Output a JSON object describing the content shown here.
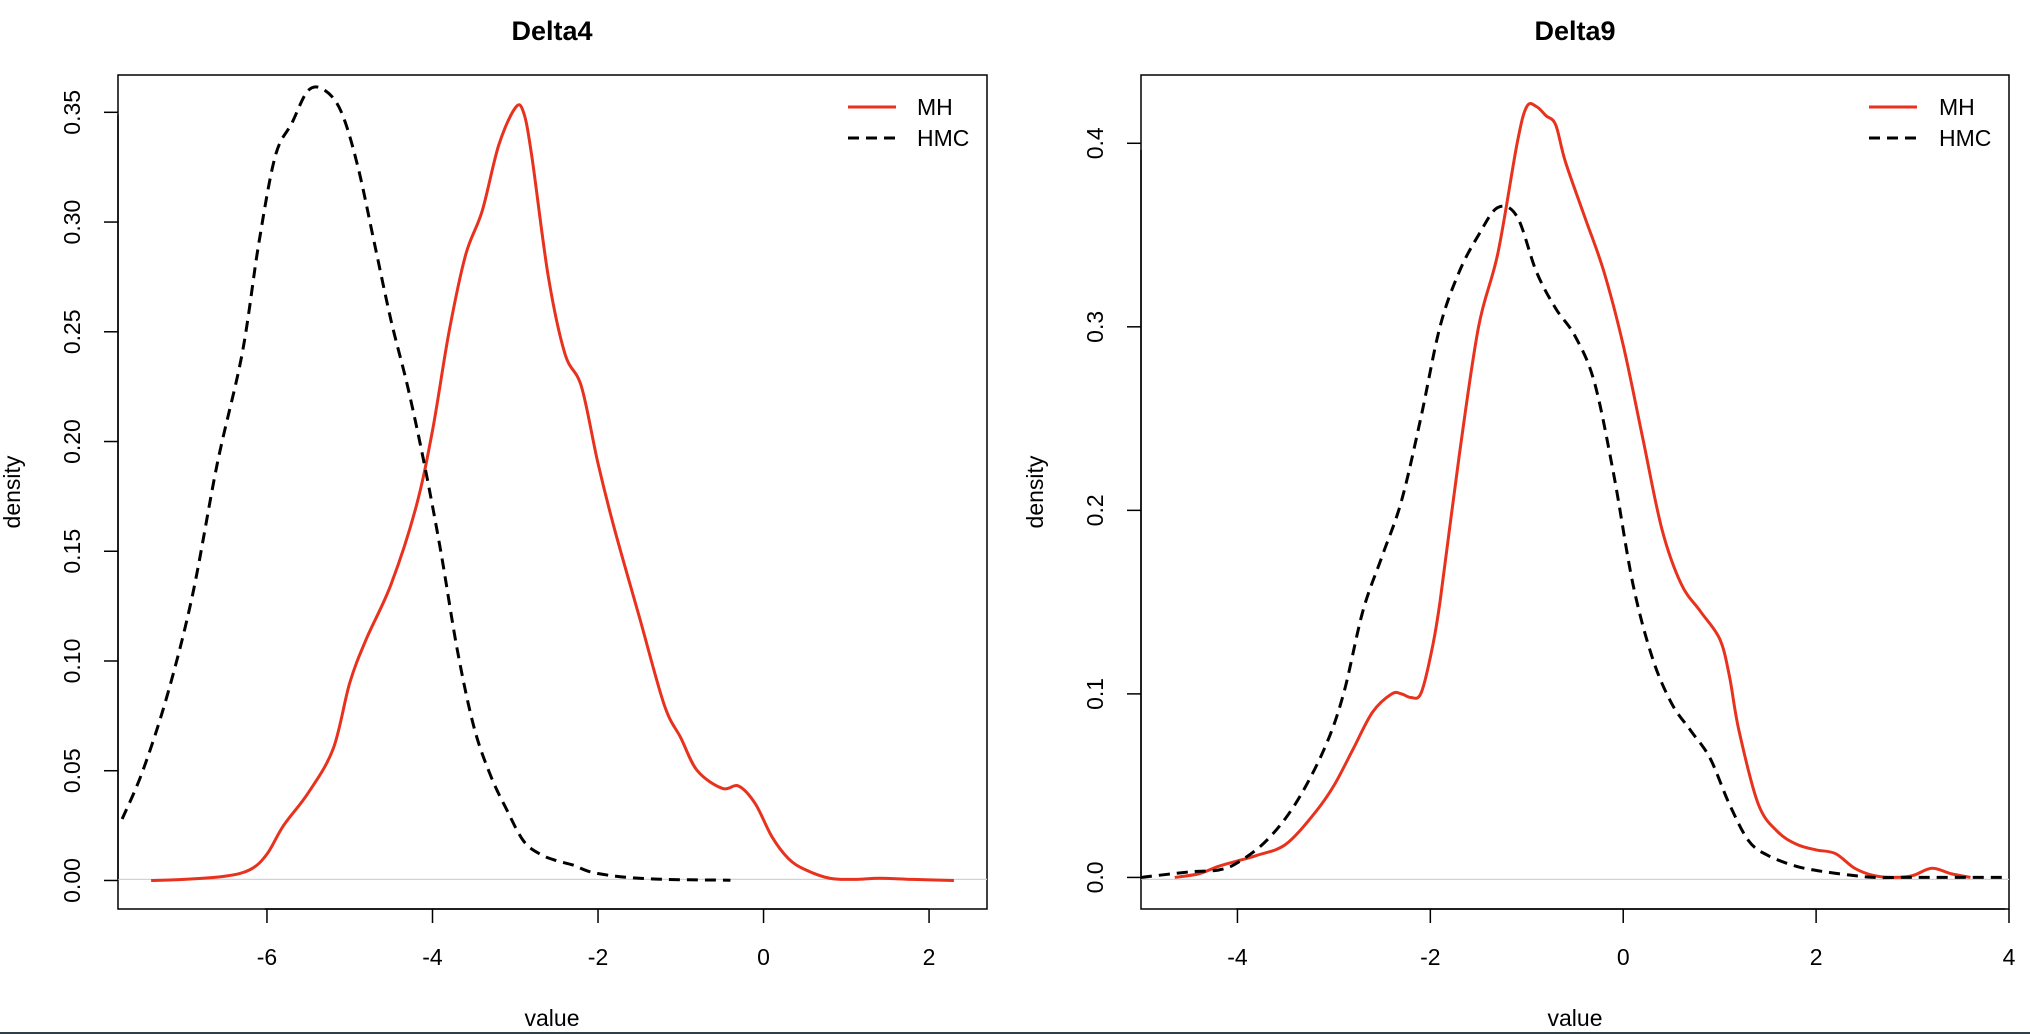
{
  "colors": {
    "mh": "#e8321e",
    "hmc": "#000000",
    "axis": "#000000",
    "baseline": "#d3d3d3",
    "background": "#ffffff"
  },
  "chart_data": [
    {
      "type": "line",
      "title": "Delta4",
      "xlabel": "value",
      "ylabel": "density",
      "xlim": [
        -7.8,
        2.7
      ],
      "ylim": [
        -0.013,
        0.367
      ],
      "x_ticks": [
        -6,
        -4,
        -2,
        0,
        2
      ],
      "x_tick_labels": [
        "-6",
        "-4",
        "-2",
        "0",
        "2"
      ],
      "y_ticks": [
        0,
        0.05,
        0.1,
        0.15,
        0.2,
        0.25,
        0.3,
        0.35
      ],
      "y_tick_labels": [
        "0.00",
        "0.05",
        "0.10",
        "0.15",
        "0.20",
        "0.25",
        "0.30",
        "0.35"
      ],
      "grid": false,
      "legend_position": "top-right",
      "series": [
        {
          "name": "MH",
          "color": "#e8321e",
          "style": "solid",
          "x": [
            -7.4,
            -7.0,
            -6.5,
            -6.2,
            -6.0,
            -5.8,
            -5.5,
            -5.2,
            -5.0,
            -4.8,
            -4.5,
            -4.2,
            -4.0,
            -3.8,
            -3.6,
            -3.4,
            -3.2,
            -3.0,
            -2.9,
            -2.8,
            -2.6,
            -2.4,
            -2.2,
            -2.0,
            -1.8,
            -1.5,
            -1.2,
            -1.0,
            -0.8,
            -0.5,
            -0.3,
            -0.1,
            0.1,
            0.3,
            0.5,
            0.8,
            1.1,
            1.4,
            1.8,
            2.3
          ],
          "y": [
            0.0,
            0.0005,
            0.002,
            0.005,
            0.012,
            0.025,
            0.04,
            0.06,
            0.09,
            0.11,
            0.135,
            0.17,
            0.205,
            0.25,
            0.285,
            0.305,
            0.335,
            0.352,
            0.35,
            0.33,
            0.275,
            0.24,
            0.225,
            0.19,
            0.16,
            0.12,
            0.08,
            0.065,
            0.05,
            0.042,
            0.043,
            0.035,
            0.02,
            0.01,
            0.005,
            0.001,
            0.0005,
            0.001,
            0.0005,
            0.0
          ]
        },
        {
          "name": "HMC",
          "color": "#000000",
          "style": "dashed",
          "x": [
            -7.75,
            -7.5,
            -7.2,
            -6.9,
            -6.6,
            -6.3,
            -6.1,
            -5.9,
            -5.7,
            -5.5,
            -5.3,
            -5.1,
            -4.9,
            -4.7,
            -4.5,
            -4.3,
            -4.1,
            -3.9,
            -3.7,
            -3.5,
            -3.3,
            -3.1,
            -2.9,
            -2.7,
            -2.5,
            -2.3,
            -2.1,
            -1.8,
            -1.5,
            -1.2,
            -0.9,
            -0.6,
            -0.4
          ],
          "y": [
            0.028,
            0.05,
            0.085,
            0.13,
            0.19,
            0.24,
            0.29,
            0.33,
            0.345,
            0.36,
            0.36,
            0.35,
            0.325,
            0.29,
            0.255,
            0.225,
            0.19,
            0.15,
            0.105,
            0.07,
            0.048,
            0.032,
            0.018,
            0.012,
            0.009,
            0.007,
            0.004,
            0.002,
            0.001,
            0.0005,
            0.0003,
            0.0002,
            0.0001
          ]
        }
      ]
    },
    {
      "type": "line",
      "title": "Delta9",
      "xlabel": "value",
      "ylabel": "density",
      "xlim": [
        -5.0,
        4.0
      ],
      "ylim": [
        -0.0172,
        0.4372
      ],
      "x_ticks": [
        -4,
        -2,
        0,
        2,
        4
      ],
      "x_tick_labels": [
        "-4",
        "-2",
        "0",
        "2",
        "4"
      ],
      "y_ticks": [
        0,
        0.1,
        0.2,
        0.3,
        0.4
      ],
      "y_tick_labels": [
        "0.0",
        "0.1",
        "0.2",
        "0.3",
        "0.4"
      ],
      "grid": false,
      "legend_position": "top-right",
      "series": [
        {
          "name": "MH",
          "color": "#e8321e",
          "style": "solid",
          "x": [
            -4.65,
            -4.4,
            -4.2,
            -4.0,
            -3.8,
            -3.5,
            -3.2,
            -3.0,
            -2.8,
            -2.6,
            -2.4,
            -2.3,
            -2.2,
            -2.1,
            -2.0,
            -1.9,
            -1.7,
            -1.5,
            -1.3,
            -1.1,
            -1.0,
            -0.9,
            -0.8,
            -0.7,
            -0.6,
            -0.4,
            -0.2,
            0.0,
            0.2,
            0.4,
            0.6,
            0.8,
            1.0,
            1.1,
            1.2,
            1.4,
            1.6,
            1.8,
            2.0,
            2.2,
            2.4,
            2.6,
            2.8,
            3.0,
            3.2,
            3.4,
            3.6
          ],
          "y": [
            0.0,
            0.002,
            0.006,
            0.009,
            0.012,
            0.018,
            0.035,
            0.05,
            0.07,
            0.09,
            0.1,
            0.1,
            0.098,
            0.1,
            0.12,
            0.15,
            0.23,
            0.3,
            0.34,
            0.4,
            0.42,
            0.42,
            0.415,
            0.41,
            0.39,
            0.36,
            0.33,
            0.29,
            0.24,
            0.19,
            0.16,
            0.145,
            0.13,
            0.11,
            0.08,
            0.04,
            0.025,
            0.018,
            0.015,
            0.013,
            0.005,
            0.001,
            0.0,
            0.001,
            0.005,
            0.002,
            0.0
          ]
        },
        {
          "name": "HMC",
          "color": "#000000",
          "style": "dashed",
          "x": [
            -5.0,
            -4.5,
            -4.2,
            -4.0,
            -3.7,
            -3.4,
            -3.1,
            -2.9,
            -2.7,
            -2.5,
            -2.3,
            -2.1,
            -1.9,
            -1.7,
            -1.5,
            -1.3,
            -1.1,
            -0.9,
            -0.7,
            -0.5,
            -0.3,
            -0.1,
            0.1,
            0.3,
            0.5,
            0.7,
            0.9,
            1.1,
            1.3,
            1.5,
            1.8,
            2.1,
            2.4,
            2.6,
            2.9,
            3.2,
            3.6,
            4.0
          ],
          "y": [
            0.0,
            0.003,
            0.004,
            0.008,
            0.02,
            0.04,
            0.07,
            0.1,
            0.145,
            0.175,
            0.205,
            0.25,
            0.3,
            0.33,
            0.35,
            0.365,
            0.36,
            0.33,
            0.31,
            0.295,
            0.27,
            0.22,
            0.16,
            0.12,
            0.095,
            0.08,
            0.065,
            0.04,
            0.02,
            0.012,
            0.006,
            0.003,
            0.001,
            0.0,
            0.0,
            0.0,
            0.0,
            0.0
          ]
        }
      ]
    }
  ]
}
